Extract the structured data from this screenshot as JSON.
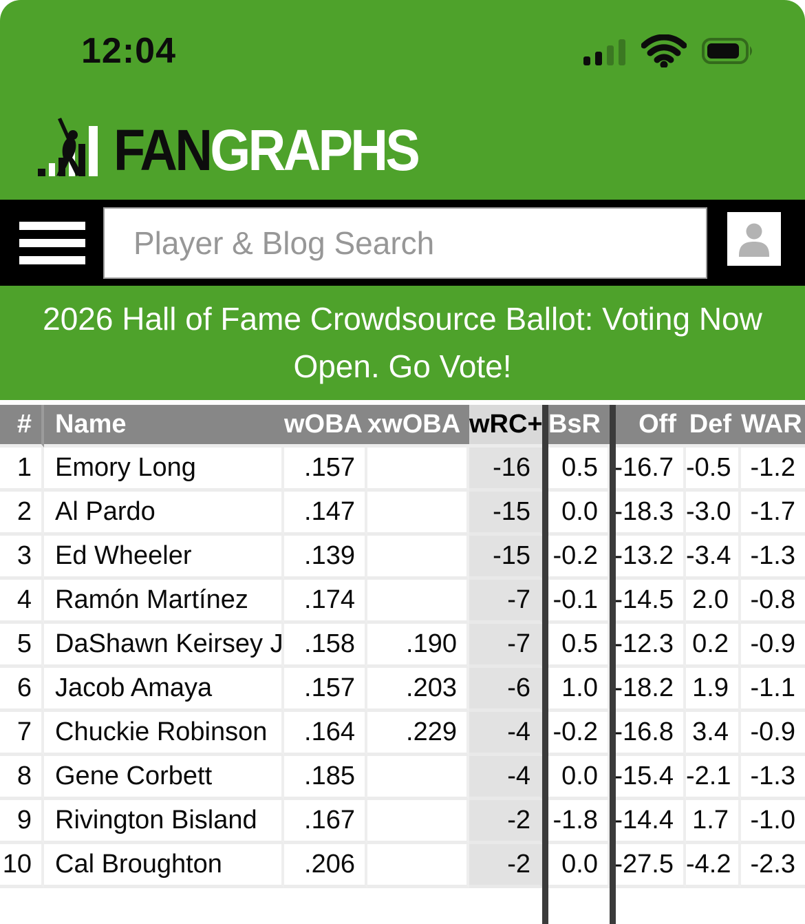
{
  "status_bar": {
    "time": "12:04",
    "signal_icon": "cellular-signal",
    "wifi_icon": "wifi",
    "battery_icon": "battery"
  },
  "logo": {
    "fan": "FAN",
    "graphs": "GRAPHS"
  },
  "nav": {
    "menu_icon": "hamburger-menu",
    "search_placeholder": "Player & Blog Search",
    "account_icon": "person"
  },
  "banner": {
    "text": "2026 Hall of Fame Crowdsource Ballot: Voting Now Open. Go Vote!"
  },
  "table": {
    "columns": [
      "#",
      "Name",
      "wOBA",
      "xwOBA",
      "wRC+",
      "BsR",
      "Off",
      "Def",
      "WAR"
    ],
    "rows": [
      {
        "rank": "1",
        "name": "Emory Long",
        "woba": ".157",
        "xwoba": "",
        "wrc": "-16",
        "bsr": "0.5",
        "off": "-16.7",
        "def": "-0.5",
        "war": "-1.2"
      },
      {
        "rank": "2",
        "name": "Al Pardo",
        "woba": ".147",
        "xwoba": "",
        "wrc": "-15",
        "bsr": "0.0",
        "off": "-18.3",
        "def": "-3.0",
        "war": "-1.7"
      },
      {
        "rank": "3",
        "name": "Ed Wheeler",
        "woba": ".139",
        "xwoba": "",
        "wrc": "-15",
        "bsr": "-0.2",
        "off": "-13.2",
        "def": "-3.4",
        "war": "-1.3"
      },
      {
        "rank": "4",
        "name": "Ramón Martínez",
        "woba": ".174",
        "xwoba": "",
        "wrc": "-7",
        "bsr": "-0.1",
        "off": "-14.5",
        "def": "2.0",
        "war": "-0.8"
      },
      {
        "rank": "5",
        "name": "DaShawn Keirsey Jr.",
        "woba": ".158",
        "xwoba": ".190",
        "wrc": "-7",
        "bsr": "0.5",
        "off": "-12.3",
        "def": "0.2",
        "war": "-0.9"
      },
      {
        "rank": "6",
        "name": "Jacob Amaya",
        "woba": ".157",
        "xwoba": ".203",
        "wrc": "-6",
        "bsr": "1.0",
        "off": "-18.2",
        "def": "1.9",
        "war": "-1.1"
      },
      {
        "rank": "7",
        "name": "Chuckie Robinson",
        "woba": ".164",
        "xwoba": ".229",
        "wrc": "-4",
        "bsr": "-0.2",
        "off": "-16.8",
        "def": "3.4",
        "war": "-0.9"
      },
      {
        "rank": "8",
        "name": "Gene Corbett",
        "woba": ".185",
        "xwoba": "",
        "wrc": "-4",
        "bsr": "0.0",
        "off": "-15.4",
        "def": "-2.1",
        "war": "-1.3"
      },
      {
        "rank": "9",
        "name": "Rivington Bisland",
        "woba": ".167",
        "xwoba": "",
        "wrc": "-2",
        "bsr": "-1.8",
        "off": "-14.4",
        "def": "1.7",
        "war": "-1.0"
      },
      {
        "rank": "10",
        "name": "Cal Broughton",
        "woba": ".206",
        "xwoba": "",
        "wrc": "-2",
        "bsr": "0.0",
        "off": "-27.5",
        "def": "-4.2",
        "war": "-2.3"
      }
    ]
  },
  "colors": {
    "brand_green": "#4EA22B",
    "nav_black": "#000000",
    "header_gray": "#878787",
    "wrc_highlight": "#e2e2e2",
    "column_divider_dark": "#3b3b3b"
  }
}
